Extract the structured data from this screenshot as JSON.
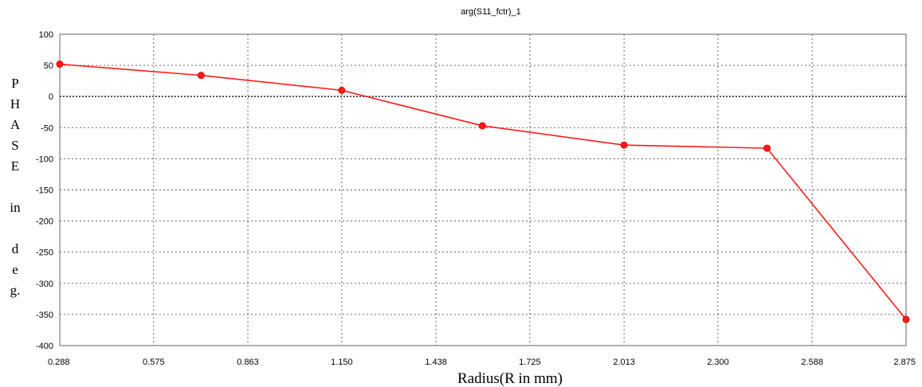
{
  "chart_data": {
    "type": "line",
    "title": "arg(S11_fctr)_1",
    "xlabel": "Radius(R in mm)",
    "ylabel": "PHASE in deg.",
    "ylabel_lines": [
      "P",
      "H",
      "A",
      "S",
      "E",
      "",
      "in",
      "",
      "d",
      "e",
      "g."
    ],
    "xlim": [
      0.288,
      2.875
    ],
    "ylim": [
      -400,
      100
    ],
    "x_ticks": [
      "0.288",
      "0.575",
      "0.863",
      "1.150",
      "1.438",
      "1.725",
      "2.013",
      "2.300",
      "2.588",
      "2.875"
    ],
    "y_ticks": [
      "100",
      "50",
      "0",
      "-50",
      "-100",
      "-150",
      "-200",
      "-250",
      "-300",
      "-350",
      "-400"
    ],
    "grid": true,
    "series": [
      {
        "color": "#ff1a1a",
        "x": [
          0.288,
          0.72,
          1.15,
          1.58,
          2.013,
          2.45,
          2.875
        ],
        "y": [
          52,
          34,
          10,
          -47,
          -78,
          -83,
          -358
        ]
      }
    ]
  }
}
